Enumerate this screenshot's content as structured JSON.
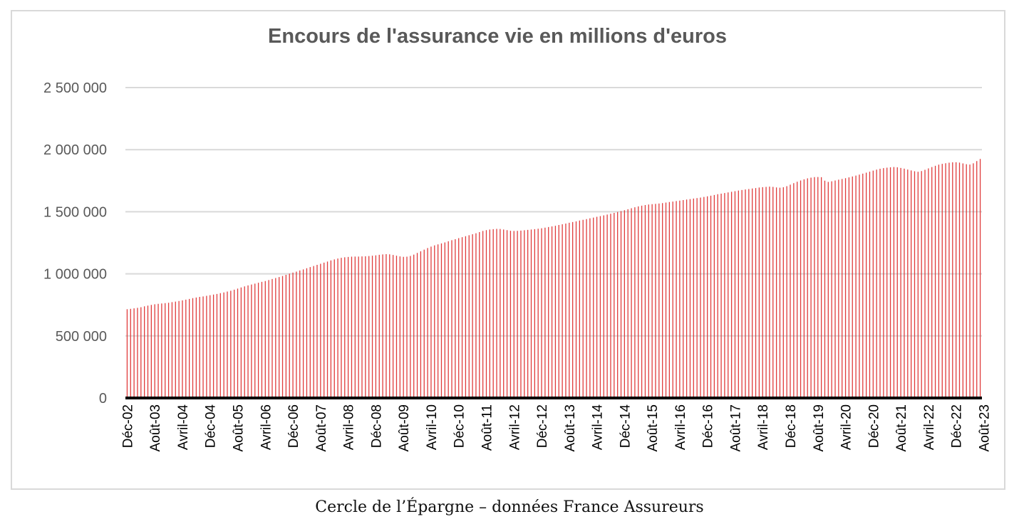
{
  "colors": {
    "bar": "#e03b3b",
    "gridline": "#d9d9d9",
    "axis": "#000000",
    "frame": "#d9d9d9"
  },
  "caption": "Cercle de l’Épargne – données France Assureurs",
  "chart_data": {
    "type": "bar",
    "title": "Encours de l'assurance vie en millions d'euros",
    "xlabel": "",
    "ylabel": "",
    "ylim": [
      0,
      2500000
    ],
    "yticks": [
      0,
      500000,
      1000000,
      1500000,
      2000000,
      2500000
    ],
    "ytick_labels": [
      "0",
      "500 000",
      "1 000 000",
      "1 500 000",
      "2 000 000",
      "2 500 000"
    ],
    "grid": true,
    "legend": "none",
    "x_tick_labels": [
      "Déc-02",
      "Août-03",
      "Avril-04",
      "Déc-04",
      "Août-05",
      "Avril-06",
      "Déc-06",
      "Août-07",
      "Avril-08",
      "Déc-08",
      "Août-09",
      "Avril-10",
      "Déc-10",
      "Août-11",
      "Avril-12",
      "Déc-12",
      "Août-13",
      "Avril-14",
      "Déc-14",
      "Août-15",
      "Avril-16",
      "Déc-16",
      "Août-17",
      "Avril-18",
      "Déc-18",
      "Août-19",
      "Avril-20",
      "Déc-20",
      "Août-21",
      "Avril-22",
      "Déc-22",
      "Août-23"
    ],
    "x_tick_every_months": 8,
    "period_start": "Déc-02",
    "frequency": "monthly",
    "series": [
      {
        "values": [
          715000,
          718000,
          722000,
          726000,
          731000,
          738000,
          744000,
          750000,
          755000,
          758000,
          761000,
          764000,
          767000,
          772000,
          776000,
          781000,
          786000,
          792000,
          798000,
          804000,
          809000,
          814000,
          818000,
          823000,
          828000,
          833000,
          838000,
          844000,
          850000,
          857000,
          864000,
          872000,
          881000,
          890000,
          899000,
          907000,
          914000,
          921000,
          928000,
          935000,
          942000,
          950000,
          958000,
          966000,
          974000,
          983000,
          992000,
          1001000,
          1010000,
          1018000,
          1027000,
          1036000,
          1045000,
          1054000,
          1063000,
          1072000,
          1081000,
          1090000,
          1099000,
          1108000,
          1116000,
          1123000,
          1129000,
          1133000,
          1136000,
          1138000,
          1139000,
          1139000,
          1140000,
          1141000,
          1143000,
          1146000,
          1149000,
          1153000,
          1156000,
          1158000,
          1157000,
          1152000,
          1146000,
          1140000,
          1137000,
          1138000,
          1144000,
          1155000,
          1168000,
          1181000,
          1195000,
          1208000,
          1219000,
          1229000,
          1237000,
          1245000,
          1253000,
          1262000,
          1271000,
          1279000,
          1287000,
          1295000,
          1303000,
          1311000,
          1319000,
          1327000,
          1336000,
          1345000,
          1352000,
          1357000,
          1360000,
          1362000,
          1361000,
          1357000,
          1352000,
          1347000,
          1345000,
          1346000,
          1348000,
          1351000,
          1354000,
          1357000,
          1360000,
          1363000,
          1367000,
          1372000,
          1377000,
          1382000,
          1387000,
          1393000,
          1399000,
          1405000,
          1411000,
          1417000,
          1423000,
          1429000,
          1435000,
          1441000,
          1447000,
          1453000,
          1459000,
          1465000,
          1471000,
          1477000,
          1484000,
          1491000,
          1498000,
          1505000,
          1512000,
          1520000,
          1528000,
          1536000,
          1543000,
          1549000,
          1554000,
          1558000,
          1561000,
          1563000,
          1566000,
          1570000,
          1574000,
          1578000,
          1582000,
          1586000,
          1590000,
          1594000,
          1598000,
          1602000,
          1606000,
          1610000,
          1614000,
          1619000,
          1624000,
          1629000,
          1635000,
          1641000,
          1646000,
          1651000,
          1656000,
          1661000,
          1666000,
          1671000,
          1675000,
          1679000,
          1683000,
          1687000,
          1691000,
          1695000,
          1698000,
          1700000,
          1702000,
          1700000,
          1696000,
          1694000,
          1697000,
          1706000,
          1718000,
          1730000,
          1742000,
          1752000,
          1761000,
          1769000,
          1775000,
          1779000,
          1780000,
          1778000,
          1750000,
          1740000,
          1745000,
          1752000,
          1758000,
          1764000,
          1770000,
          1777000,
          1784000,
          1791000,
          1799000,
          1807000,
          1815000,
          1823000,
          1831000,
          1839000,
          1846000,
          1851000,
          1855000,
          1858000,
          1860000,
          1858000,
          1853000,
          1847000,
          1840000,
          1833000,
          1826000,
          1822000,
          1828000,
          1838000,
          1849000,
          1860000,
          1870000,
          1879000,
          1886000,
          1891000,
          1895000,
          1898000,
          1899000,
          1896000,
          1889000,
          1883000,
          1880000,
          1890000,
          1908000,
          1925000
        ]
      }
    ]
  }
}
